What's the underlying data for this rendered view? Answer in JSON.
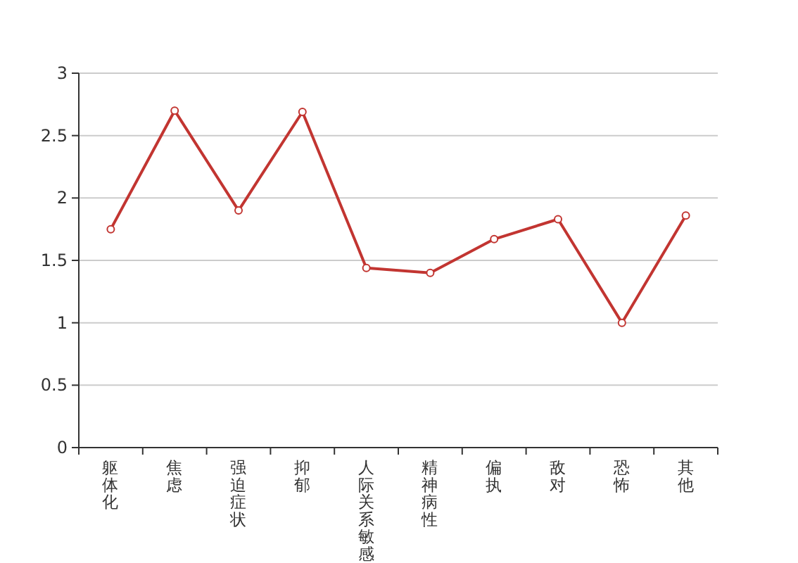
{
  "chart_data": {
    "type": "line",
    "categories": [
      "躯体化",
      "焦虑",
      "强迫症状",
      "抑郁",
      "人际关系敏感",
      "精神病性",
      "偏执",
      "敌对",
      "恐怖",
      "其他"
    ],
    "series": [
      {
        "color": "#c23531",
        "values": [
          1.75,
          2.7,
          1.9,
          2.69,
          1.44,
          1.4,
          1.67,
          1.83,
          1.0,
          1.86
        ]
      }
    ],
    "ylim": [
      0,
      3
    ],
    "yticks": [
      0,
      0.5,
      1,
      1.5,
      2,
      2.5,
      3
    ],
    "grid": "y",
    "marker": "circle",
    "line_style": "solid"
  }
}
